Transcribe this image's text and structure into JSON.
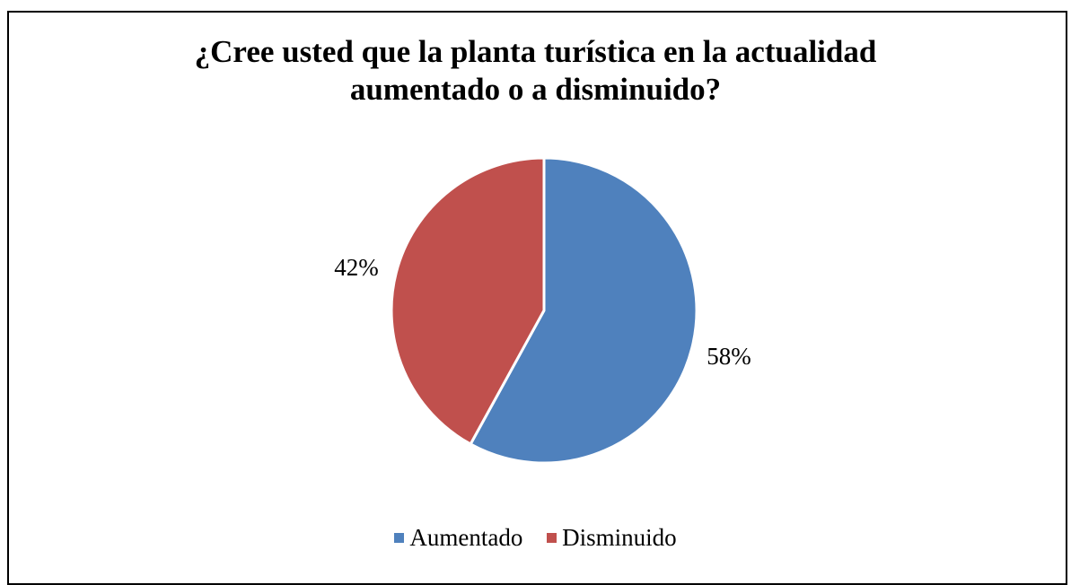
{
  "chart_data": {
    "type": "pie",
    "title_lines": [
      "¿Cree usted que la planta turística en la actualidad",
      "aumentado o a disminuido?"
    ],
    "categories": [
      "Aumentado",
      "Disminuido"
    ],
    "values": [
      58,
      42
    ],
    "labels": [
      "58%",
      "42%"
    ],
    "colors": [
      "#4F81BD",
      "#C0504D"
    ],
    "legend_position": "bottom",
    "start_angle": "top",
    "direction": "clockwise"
  }
}
